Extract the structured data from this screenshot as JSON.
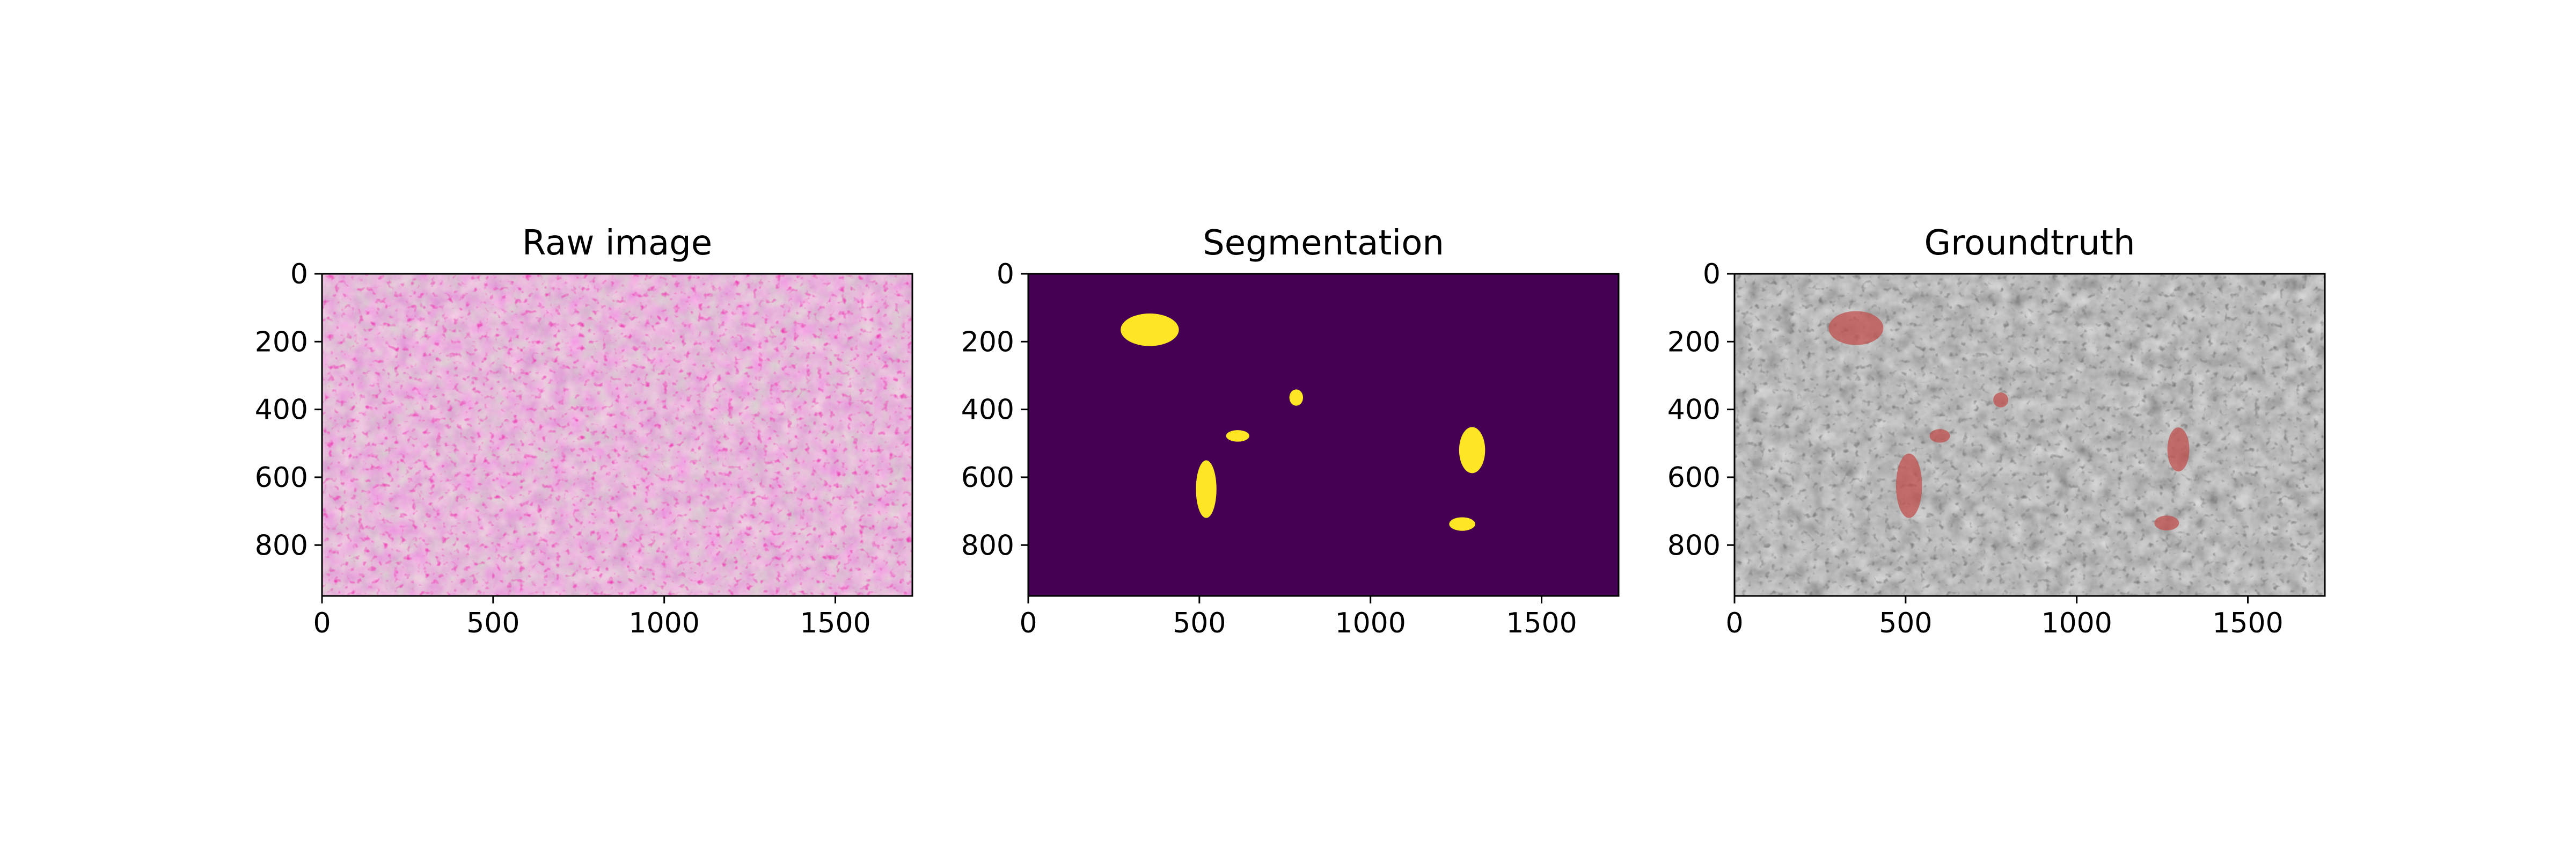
{
  "chart_data": [
    {
      "type": "image",
      "title": "Raw image",
      "xlim": [
        0,
        1725
      ],
      "ylim": [
        950,
        0
      ],
      "xticks": [
        0,
        500,
        1000,
        1500
      ],
      "yticks": [
        0,
        200,
        400,
        600,
        800
      ],
      "xtick_labels": [
        "0",
        "500",
        "1000",
        "1500"
      ],
      "ytick_labels": [
        "0",
        "200",
        "400",
        "600",
        "800"
      ],
      "style": "he-stain",
      "image_description": "H&E-stained lung tissue, pink/purple texture"
    },
    {
      "type": "image",
      "title": "Segmentation",
      "xlim": [
        0,
        1725
      ],
      "ylim": [
        950,
        0
      ],
      "xticks": [
        0,
        500,
        1000,
        1500
      ],
      "yticks": [
        0,
        200,
        400,
        600,
        800
      ],
      "xtick_labels": [
        "0",
        "500",
        "1000",
        "1500"
      ],
      "ytick_labels": [
        "0",
        "200",
        "400",
        "600",
        "800"
      ],
      "background_color": "#440154",
      "mask_color": "#fde725",
      "regions": [
        {
          "x": 355,
          "y": 165,
          "rx": 85,
          "ry": 48
        },
        {
          "x": 520,
          "y": 635,
          "rx": 30,
          "ry": 85
        },
        {
          "x": 612,
          "y": 478,
          "rx": 34,
          "ry": 17
        },
        {
          "x": 783,
          "y": 365,
          "rx": 20,
          "ry": 24
        },
        {
          "x": 1297,
          "y": 520,
          "rx": 38,
          "ry": 68
        },
        {
          "x": 1268,
          "y": 738,
          "rx": 38,
          "ry": 20
        }
      ]
    },
    {
      "type": "image",
      "title": "Groundtruth",
      "xlim": [
        0,
        1725
      ],
      "ylim": [
        950,
        0
      ],
      "xticks": [
        0,
        500,
        1000,
        1500
      ],
      "yticks": [
        0,
        200,
        400,
        600,
        800
      ],
      "xtick_labels": [
        "0",
        "500",
        "1000",
        "1500"
      ],
      "ytick_labels": [
        "0",
        "200",
        "400",
        "600",
        "800"
      ],
      "style": "grayscale",
      "overlay_color": "#c0504d",
      "regions": [
        {
          "x": 355,
          "y": 160,
          "rx": 80,
          "ry": 50
        },
        {
          "x": 510,
          "y": 625,
          "rx": 38,
          "ry": 95
        },
        {
          "x": 600,
          "y": 478,
          "rx": 30,
          "ry": 20
        },
        {
          "x": 778,
          "y": 372,
          "rx": 22,
          "ry": 22
        },
        {
          "x": 1297,
          "y": 518,
          "rx": 32,
          "ry": 65
        },
        {
          "x": 1263,
          "y": 735,
          "rx": 36,
          "ry": 22
        }
      ]
    }
  ]
}
